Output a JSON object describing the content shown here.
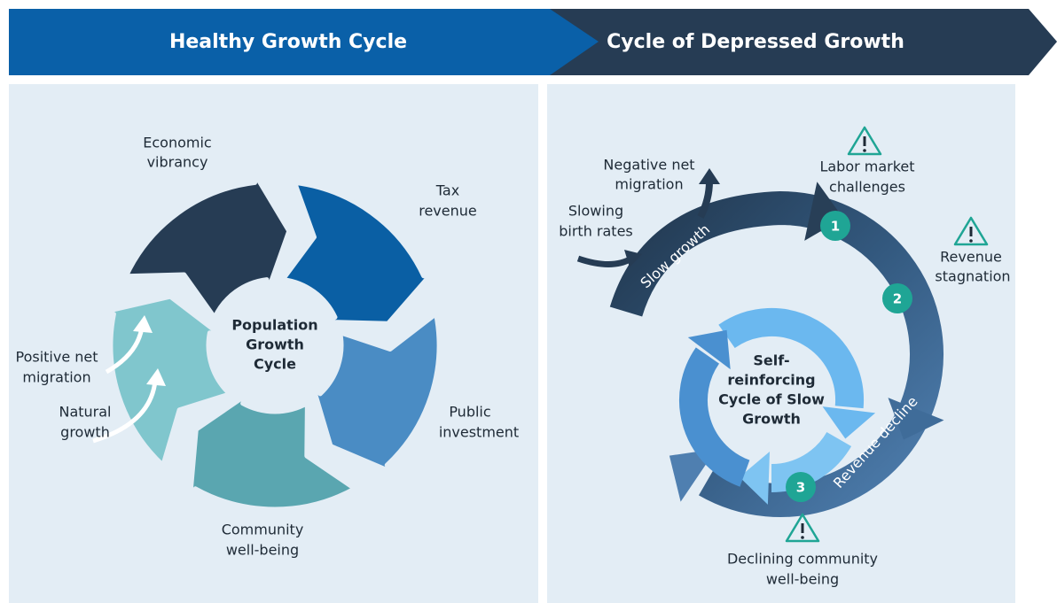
{
  "header": {
    "left_title": "Healthy Growth Cycle",
    "right_title": "Cycle of Depressed Growth"
  },
  "healthy_cycle": {
    "center": [
      "Population",
      "Growth",
      "Cycle"
    ],
    "labels": [
      [
        "Economic",
        "vibrancy"
      ],
      [
        "Tax",
        "revenue"
      ],
      [
        "Public",
        "investment"
      ],
      [
        "Community",
        "well-being"
      ],
      [
        "Positive net",
        "migration"
      ],
      [
        "Natural",
        "growth"
      ]
    ]
  },
  "depressed_cycle": {
    "center": [
      "Self-",
      "reinforcing",
      "Cycle of Slow",
      "Growth"
    ],
    "inputs": [
      [
        "Negative net",
        "migration"
      ],
      [
        "Slowing",
        "birth rates"
      ]
    ],
    "band_labels": [
      "Slow growth",
      "Revenue decline"
    ],
    "steps": [
      {
        "number": "1",
        "label": [
          "Labor market",
          "challenges"
        ]
      },
      {
        "number": "2",
        "label": [
          "Revenue",
          "stagnation"
        ]
      },
      {
        "number": "3",
        "label": [
          "Declining community",
          "well-being"
        ]
      }
    ]
  }
}
